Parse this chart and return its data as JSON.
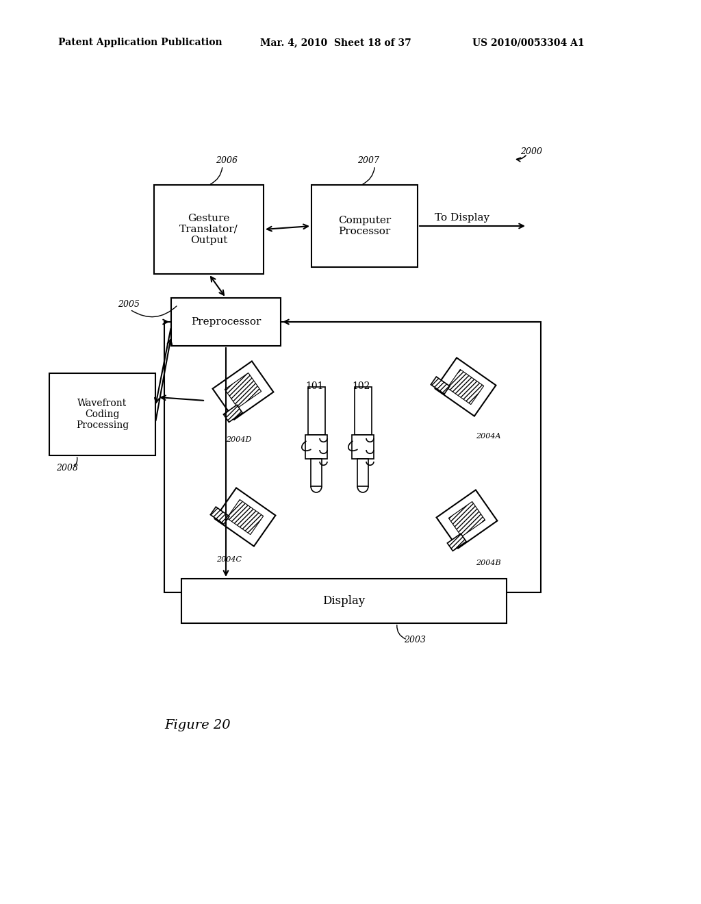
{
  "bg_color": "#ffffff",
  "header_left": "Patent Application Publication",
  "header_mid": "Mar. 4, 2010  Sheet 18 of 37",
  "header_right": "US 2010/0053304 A1",
  "figure_label": "Figure 20"
}
